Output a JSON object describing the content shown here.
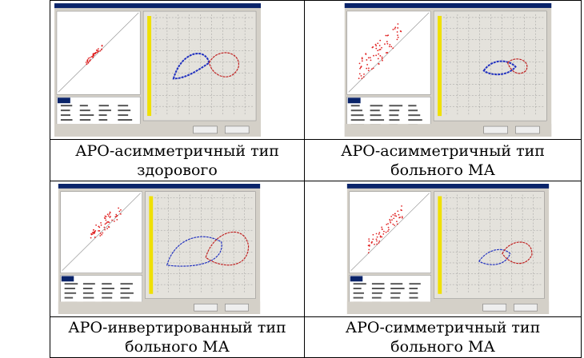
{
  "table": {
    "rows": [
      [
        "АРО-асимметричный тип здорового",
        "АРО-асимметричный тип больного МА"
      ],
      [
        "АРО-инвертированный тип больного МА",
        "АРО-симметричный тип больного МА"
      ]
    ]
  }
}
